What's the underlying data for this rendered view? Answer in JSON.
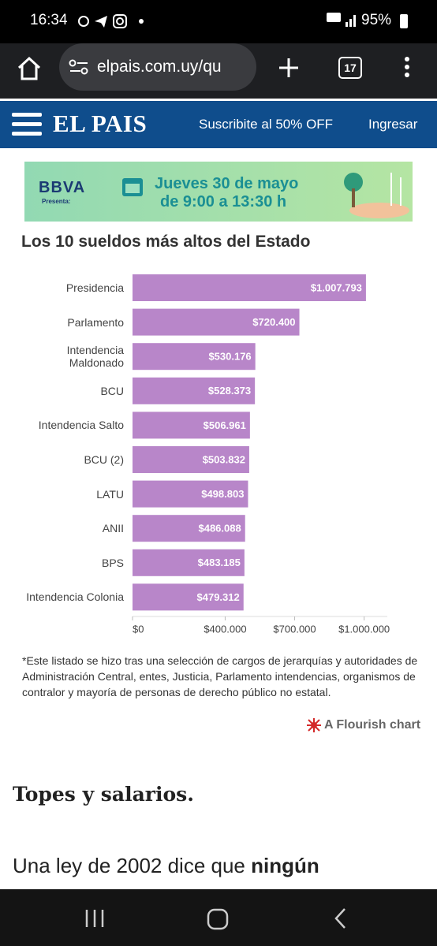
{
  "status_bar": {
    "time": "16:34",
    "battery": "95%"
  },
  "browser": {
    "url": "elpais.com.uy/qu",
    "tab_count": "17"
  },
  "site_header": {
    "logo": "EL PAIS",
    "subscribe": "Suscribite al 50% OFF",
    "login": "Ingresar"
  },
  "ad": {
    "brand": "BBVA",
    "presents": "Presenta:",
    "line1": "Jueves 30 de mayo",
    "line2": "de 9:00 a 13:30 h"
  },
  "chart_data": {
    "type": "bar",
    "orientation": "horizontal",
    "title": "Los 10 sueldos más altos del Estado",
    "categories": [
      "Presidencia",
      "Parlamento",
      "Intendencia Maldonado",
      "BCU",
      "Intendencia Salto",
      "BCU (2)",
      "LATU",
      "ANII",
      "BPS",
      "Intendencia Colonia"
    ],
    "values": [
      1007793,
      720400,
      530176,
      528373,
      506961,
      503832,
      498803,
      486088,
      483185,
      479312
    ],
    "value_labels": [
      "$1.007.793",
      "$720.400",
      "$530.176",
      "$528.373",
      "$506.961",
      "$503.832",
      "$498.803",
      "$486.088",
      "$483.185",
      "$479.312"
    ],
    "color": "#b886c9",
    "xlim": [
      0,
      1100000
    ],
    "xticks": [
      {
        "value": 0,
        "label": "$0"
      },
      {
        "value": 400000,
        "label": "$400.000"
      },
      {
        "value": 700000,
        "label": "$700.000"
      },
      {
        "value": 1000000,
        "label": "$1.000.000"
      }
    ],
    "grid": false,
    "note": "*Este listado se hizo tras una selección de cargos de jerarquías y autoridades de Administración Central, entes, Justicia, Parlamento intendencias, organismos de contralor y mayoría de personas de derecho público no estatal.",
    "credit": "A Flourish chart"
  },
  "article": {
    "heading": "Topes y salarios.",
    "paragraph_start": "Una ley de 2002 dice que",
    "paragraph_bold": "ningún"
  }
}
